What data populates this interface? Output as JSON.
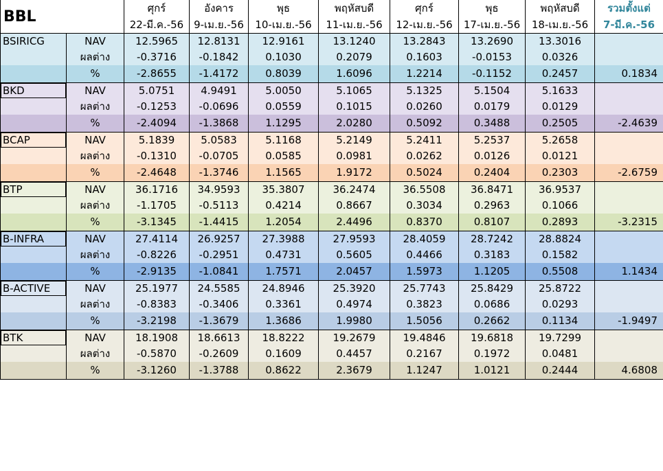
{
  "brand": "BBL",
  "header": {
    "days": [
      "ศุกร์",
      "อังคาร",
      "พุธ",
      "พฤหัสบดี",
      "ศุกร์",
      "พุธ",
      "พฤหัสบดี"
    ],
    "dates": [
      "22-มี.ค.-56",
      "9-เม.ย.-56",
      "10-เม.ย.-56",
      "11-เม.ย.-56",
      "12-เม.ย.-56",
      "17-เม.ย.-56",
      "18-เม.ย.-56"
    ],
    "total_label": "รวมตั้งแต่",
    "total_date": "7-มี.ค.-56"
  },
  "row_labels": {
    "nav": "NAV",
    "diff": "ผลต่าง",
    "pct": "%"
  },
  "funds": [
    {
      "name": "BSIRICG",
      "colors": {
        "light": "#d6eaf2",
        "dark": "#b5dae8"
      },
      "nav": [
        "12.5965",
        "12.8131",
        "12.9161",
        "13.1240",
        "13.2843",
        "13.2690",
        "13.3016"
      ],
      "diff": [
        "-0.3716",
        "-0.1842",
        "0.1030",
        "0.2079",
        "0.1603",
        "-0.0153",
        "0.0326"
      ],
      "pct": [
        "-2.8655",
        "-1.4172",
        "0.8039",
        "1.6096",
        "1.2214",
        "-0.1152",
        "0.2457"
      ],
      "total": "0.1834"
    },
    {
      "name": "BKD",
      "colors": {
        "light": "#e5dfef",
        "dark": "#cbbfdc"
      },
      "nav": [
        "5.0751",
        "4.9491",
        "5.0050",
        "5.1065",
        "5.1325",
        "5.1504",
        "5.1633"
      ],
      "diff": [
        "-0.1253",
        "-0.0696",
        "0.0559",
        "0.1015",
        "0.0260",
        "0.0179",
        "0.0129"
      ],
      "pct": [
        "-2.4094",
        "-1.3868",
        "1.1295",
        "2.0280",
        "0.5092",
        "0.3488",
        "0.2505"
      ],
      "total": "-2.4639"
    },
    {
      "name": "BCAP",
      "colors": {
        "light": "#fde9da",
        "dark": "#fad3b4"
      },
      "nav": [
        "5.1839",
        "5.0583",
        "5.1168",
        "5.2149",
        "5.2411",
        "5.2537",
        "5.2658"
      ],
      "diff": [
        "-0.1310",
        "-0.0705",
        "0.0585",
        "0.0981",
        "0.0262",
        "0.0126",
        "0.0121"
      ],
      "pct": [
        "-2.4648",
        "-1.3746",
        "1.1565",
        "1.9172",
        "0.5024",
        "0.2404",
        "0.2303"
      ],
      "total": "-2.6759"
    },
    {
      "name": "BTP",
      "colors": {
        "light": "#ecf1de",
        "dark": "#d8e4bc"
      },
      "nav": [
        "36.1716",
        "34.9593",
        "35.3807",
        "36.2474",
        "36.5508",
        "36.8471",
        "36.9537"
      ],
      "diff": [
        "-1.1705",
        "-0.5113",
        "0.4214",
        "0.8667",
        "0.3034",
        "0.2963",
        "0.1066"
      ],
      "pct": [
        "-3.1345",
        "-1.4415",
        "1.2054",
        "2.4496",
        "0.8370",
        "0.8107",
        "0.2893"
      ],
      "total": "-3.2315"
    },
    {
      "name": "B-INFRA",
      "colors": {
        "light": "#c5d9f1",
        "dark": "#8eb4e3"
      },
      "nav": [
        "27.4114",
        "26.9257",
        "27.3988",
        "27.9593",
        "28.4059",
        "28.7242",
        "28.8824"
      ],
      "diff": [
        "-0.8226",
        "-0.2951",
        "0.4731",
        "0.5605",
        "0.4466",
        "0.3183",
        "0.1582"
      ],
      "pct": [
        "-2.9135",
        "-1.0841",
        "1.7571",
        "2.0457",
        "1.5973",
        "1.1205",
        "0.5508"
      ],
      "total": "1.1434"
    },
    {
      "name": "B-ACTIVE",
      "colors": {
        "light": "#dce6f2",
        "dark": "#b9cde5"
      },
      "nav": [
        "25.1977",
        "24.5585",
        "24.8946",
        "25.3920",
        "25.7743",
        "25.8429",
        "25.8722"
      ],
      "diff": [
        "-0.8383",
        "-0.3406",
        "0.3361",
        "0.4974",
        "0.3823",
        "0.0686",
        "0.0293"
      ],
      "pct": [
        "-3.2198",
        "-1.3679",
        "1.3686",
        "1.9980",
        "1.5056",
        "0.2662",
        "0.1134"
      ],
      "total": "-1.9497"
    },
    {
      "name": "BTK",
      "colors": {
        "light": "#eeece1",
        "dark": "#ddd9c4"
      },
      "nav": [
        "18.1908",
        "18.6613",
        "18.8222",
        "19.2679",
        "19.4846",
        "19.6818",
        "19.7299"
      ],
      "diff": [
        "-0.5870",
        "-0.2609",
        "0.1609",
        "0.4457",
        "0.2167",
        "0.1972",
        "0.0481"
      ],
      "pct": [
        "-3.1260",
        "-1.3788",
        "0.8622",
        "2.3679",
        "1.1247",
        "1.0121",
        "0.2444"
      ],
      "total": "4.6808"
    }
  ]
}
